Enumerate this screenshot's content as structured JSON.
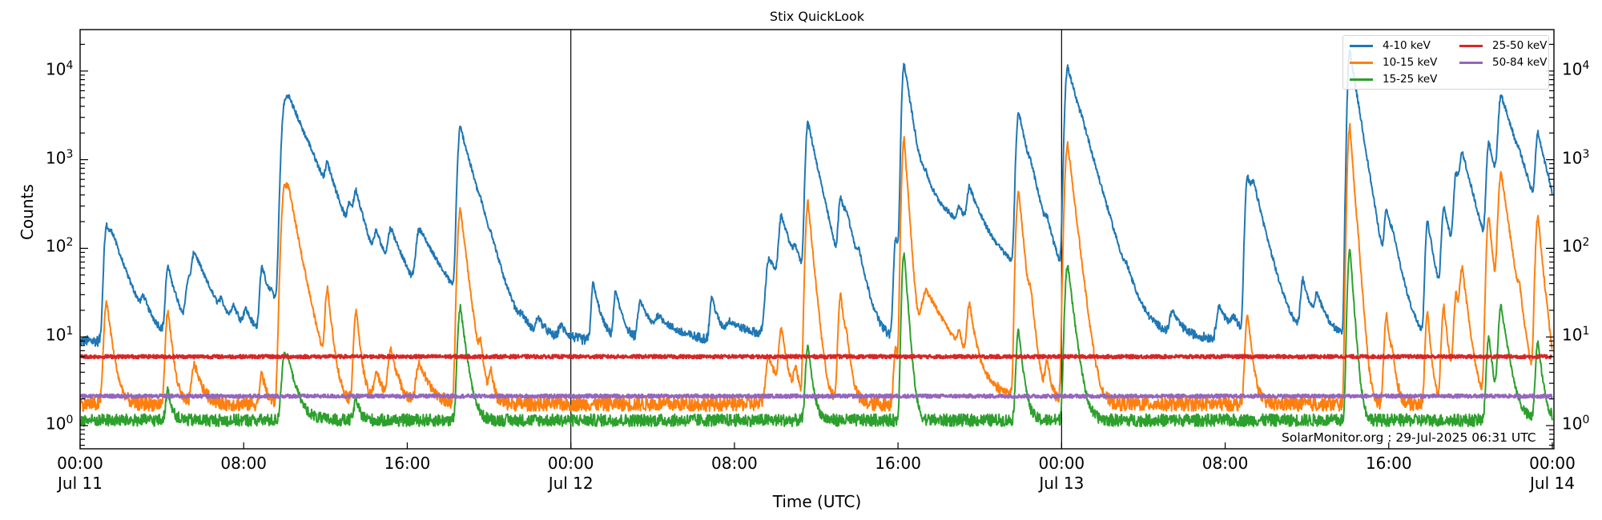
{
  "chart_data": {
    "type": "line",
    "title": "Stix QuickLook",
    "xlabel": "Time (UTC)",
    "ylabel": "Counts",
    "yscale": "log",
    "ylim": [
      0.55,
      30000
    ],
    "xlim_hours": [
      0,
      72
    ],
    "x_tick_labels": [
      {
        "hour": 0,
        "time": "00:00",
        "date": "Jul 11"
      },
      {
        "hour": 8,
        "time": "08:00",
        "date": ""
      },
      {
        "hour": 16,
        "time": "16:00",
        "date": ""
      },
      {
        "hour": 24,
        "time": "00:00",
        "date": "Jul 12"
      },
      {
        "hour": 32,
        "time": "08:00",
        "date": ""
      },
      {
        "hour": 40,
        "time": "16:00",
        "date": ""
      },
      {
        "hour": 48,
        "time": "00:00",
        "date": "Jul 13"
      },
      {
        "hour": 56,
        "time": "08:00",
        "date": ""
      },
      {
        "hour": 64,
        "time": "16:00",
        "date": ""
      },
      {
        "hour": 72,
        "time": "00:00",
        "date": "Jul 14"
      }
    ],
    "y_tick_labels": [
      {
        "exp": 0,
        "base": "10",
        "sup": "0"
      },
      {
        "exp": 1,
        "base": "10",
        "sup": "1"
      },
      {
        "exp": 2,
        "base": "10",
        "sup": "2"
      },
      {
        "exp": 3,
        "base": "10",
        "sup": "3"
      },
      {
        "exp": 4,
        "base": "10",
        "sup": "4"
      }
    ],
    "day_boundaries_hours": [
      24,
      48
    ],
    "legend": {
      "position": "upper right",
      "ncol": 2,
      "entries": [
        "4-10 keV",
        "10-15 keV",
        "15-25 keV",
        "25-50 keV",
        "50-84 keV"
      ]
    },
    "series": [
      {
        "name": "4-10 keV",
        "color": "#1f77b4",
        "baseline": 9,
        "noise": 0.06
      },
      {
        "name": "10-15 keV",
        "color": "#ff7f0e",
        "baseline": 1.75,
        "noise": 0.08
      },
      {
        "name": "15-25 keV",
        "color": "#2ca02c",
        "baseline": 1.15,
        "noise": 0.07
      },
      {
        "name": "25-50 keV",
        "color": "#d62728",
        "baseline": 6.0,
        "noise": 0.02
      },
      {
        "name": "50-84 keV",
        "color": "#9467bd",
        "baseline": 2.15,
        "noise": 0.02
      }
    ],
    "flares": [
      {
        "t": 1.3,
        "b": 180,
        "o": 25,
        "g": 0,
        "d": 0.5
      },
      {
        "t": 1.6,
        "b": 55,
        "o": 0,
        "g": 0,
        "d": 0.8
      },
      {
        "t": 3.1,
        "b": 18,
        "o": 0,
        "g": 0,
        "d": 0.3
      },
      {
        "t": 4.3,
        "b": 60,
        "o": 20,
        "g": 2.5,
        "d": 0.4
      },
      {
        "t": 5.3,
        "b": 40,
        "o": 0,
        "g": 0,
        "d": 0.6
      },
      {
        "t": 5.6,
        "b": 70,
        "o": 5,
        "g": 0,
        "d": 0.7
      },
      {
        "t": 6.9,
        "b": 15,
        "o": 0,
        "g": 0,
        "d": 0.4
      },
      {
        "t": 7.5,
        "b": 17,
        "o": 0,
        "g": 0,
        "d": 0.4
      },
      {
        "t": 8.1,
        "b": 17,
        "o": 0,
        "g": 0,
        "d": 0.4
      },
      {
        "t": 8.9,
        "b": 60,
        "o": 4,
        "g": 0,
        "d": 0.4
      },
      {
        "t": 9.4,
        "b": 18,
        "o": 0,
        "g": 0,
        "d": 0.6
      },
      {
        "t": 10.0,
        "b": 3800,
        "o": 450,
        "g": 6,
        "d": 0.7
      },
      {
        "t": 10.2,
        "b": 2400,
        "o": 250,
        "g": 3,
        "d": 0.9
      },
      {
        "t": 11.2,
        "b": 55,
        "o": 0,
        "g": 0,
        "d": 0.2
      },
      {
        "t": 12.1,
        "b": 450,
        "o": 33,
        "g": 0,
        "d": 0.4
      },
      {
        "t": 13.2,
        "b": 180,
        "o": 0,
        "g": 0,
        "d": 0.5
      },
      {
        "t": 13.5,
        "b": 260,
        "o": 20,
        "g": 2,
        "d": 0.4
      },
      {
        "t": 14.5,
        "b": 95,
        "o": 4,
        "g": 0,
        "d": 0.7
      },
      {
        "t": 15.2,
        "b": 120,
        "o": 7,
        "g": 0,
        "d": 0.7
      },
      {
        "t": 16.6,
        "b": 145,
        "o": 5,
        "g": 0,
        "d": 1.0
      },
      {
        "t": 18.6,
        "b": 2300,
        "o": 280,
        "g": 22,
        "d": 0.5
      },
      {
        "t": 19.6,
        "b": 45,
        "o": 6,
        "g": 0,
        "d": 0.3
      },
      {
        "t": 20.1,
        "b": 30,
        "o": 4,
        "g": 0,
        "d": 0.3
      },
      {
        "t": 21.6,
        "b": 12,
        "o": 0,
        "g": 0,
        "d": 0.4
      },
      {
        "t": 22.4,
        "b": 15,
        "o": 0,
        "g": 0,
        "d": 0.4
      },
      {
        "t": 23.5,
        "b": 13,
        "o": 0,
        "g": 0,
        "d": 0.4
      },
      {
        "t": 25.1,
        "b": 40,
        "o": 0,
        "g": 0,
        "d": 0.3
      },
      {
        "t": 26.2,
        "b": 32,
        "o": 0,
        "g": 0,
        "d": 0.3
      },
      {
        "t": 27.4,
        "b": 25,
        "o": 0,
        "g": 0,
        "d": 0.5
      },
      {
        "t": 28.3,
        "b": 15,
        "o": 0,
        "g": 0,
        "d": 1.0
      },
      {
        "t": 30.9,
        "b": 28,
        "o": 0,
        "g": 0,
        "d": 0.3
      },
      {
        "t": 31.8,
        "b": 14,
        "o": 0,
        "g": 0,
        "d": 1.5
      },
      {
        "t": 33.7,
        "b": 75,
        "o": 6,
        "g": 0,
        "d": 0.9
      },
      {
        "t": 34.3,
        "b": 200,
        "o": 12,
        "g": 0,
        "d": 0.5
      },
      {
        "t": 35.0,
        "b": 45,
        "o": 4,
        "g": 0,
        "d": 0.4
      },
      {
        "t": 35.6,
        "b": 2600,
        "o": 330,
        "g": 8,
        "d": 0.4
      },
      {
        "t": 37.2,
        "b": 330,
        "o": 30,
        "g": 0,
        "d": 0.4
      },
      {
        "t": 37.5,
        "b": 90,
        "o": 6,
        "g": 0,
        "d": 0.4
      },
      {
        "t": 38.1,
        "b": 40,
        "o": 0,
        "g": 0,
        "d": 0.3
      },
      {
        "t": 39.9,
        "b": 130,
        "o": 8,
        "g": 0,
        "d": 0.3
      },
      {
        "t": 40.3,
        "b": 12000,
        "o": 1700,
        "g": 90,
        "d": 0.3
      },
      {
        "t": 41.4,
        "b": 400,
        "o": 33,
        "g": 0,
        "d": 2.2
      },
      {
        "t": 43.0,
        "b": 120,
        "o": 6,
        "g": 0,
        "d": 0.3
      },
      {
        "t": 43.5,
        "b": 330,
        "o": 20,
        "g": 0,
        "d": 0.5
      },
      {
        "t": 45.9,
        "b": 3400,
        "o": 450,
        "g": 12,
        "d": 0.4
      },
      {
        "t": 46.5,
        "b": 190,
        "o": 20,
        "g": 0,
        "d": 0.4
      },
      {
        "t": 47.3,
        "b": 70,
        "o": 5,
        "g": 0,
        "d": 0.4
      },
      {
        "t": 48.3,
        "b": 11000,
        "o": 1500,
        "g": 65,
        "d": 0.5
      },
      {
        "t": 49.0,
        "b": 350,
        "o": 0,
        "g": 0,
        "d": 0.6
      },
      {
        "t": 50.1,
        "b": 18,
        "o": 0,
        "g": 0,
        "d": 0.3
      },
      {
        "t": 51.2,
        "b": 20,
        "o": 0,
        "g": 0,
        "d": 0.3
      },
      {
        "t": 53.4,
        "b": 18,
        "o": 0,
        "g": 0,
        "d": 0.4
      },
      {
        "t": 55.7,
        "b": 22,
        "o": 0,
        "g": 0,
        "d": 0.5
      },
      {
        "t": 56.4,
        "b": 14,
        "o": 0,
        "g": 0,
        "d": 0.4
      },
      {
        "t": 57.1,
        "b": 650,
        "o": 18,
        "g": 0,
        "d": 0.4
      },
      {
        "t": 57.4,
        "b": 250,
        "o": 0,
        "g": 0,
        "d": 0.5
      },
      {
        "t": 59.8,
        "b": 42,
        "o": 0,
        "g": 0,
        "d": 0.4
      },
      {
        "t": 60.5,
        "b": 25,
        "o": 0,
        "g": 0,
        "d": 0.5
      },
      {
        "t": 62.1,
        "b": 16500,
        "o": 2400,
        "g": 100,
        "d": 0.3
      },
      {
        "t": 62.5,
        "b": 180,
        "o": 30,
        "g": 0,
        "d": 0.3
      },
      {
        "t": 63.9,
        "b": 230,
        "o": 18,
        "g": 0,
        "d": 0.4
      },
      {
        "t": 64.2,
        "b": 40,
        "o": 4,
        "g": 0,
        "d": 0.3
      },
      {
        "t": 65.9,
        "b": 200,
        "o": 20,
        "g": 0,
        "d": 0.3
      },
      {
        "t": 66.7,
        "b": 280,
        "o": 22,
        "g": 0,
        "d": 0.4
      },
      {
        "t": 67.3,
        "b": 650,
        "o": 30,
        "g": 0,
        "d": 0.4
      },
      {
        "t": 67.6,
        "b": 900,
        "o": 55,
        "g": 0,
        "d": 0.5
      },
      {
        "t": 68.9,
        "b": 1500,
        "o": 230,
        "g": 10,
        "d": 0.4
      },
      {
        "t": 69.5,
        "b": 5000,
        "o": 700,
        "g": 22,
        "d": 0.6
      },
      {
        "t": 70.4,
        "b": 140,
        "o": 15,
        "g": 0,
        "d": 0.3
      },
      {
        "t": 71.3,
        "b": 1800,
        "o": 230,
        "g": 9,
        "d": 0.4
      },
      {
        "t": 71.8,
        "b": 45,
        "o": 3,
        "g": 0,
        "d": 0.4
      }
    ]
  },
  "annotation": {
    "text": "SolarMonitor.org : 29-Jul-2025 06:31 UTC"
  }
}
